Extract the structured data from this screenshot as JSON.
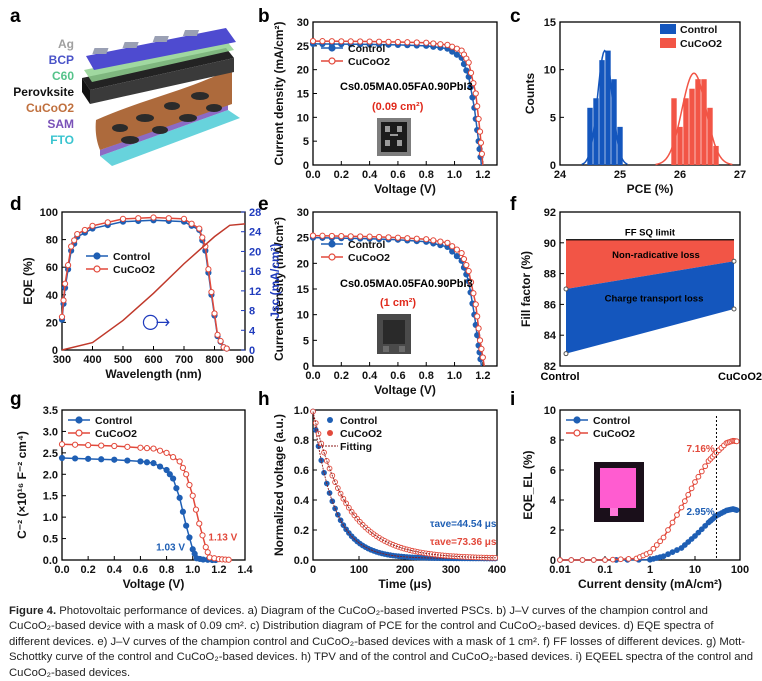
{
  "panels": {
    "a": {
      "label": "a",
      "layers": [
        "Ag",
        "BCP",
        "C60",
        "Perovksite",
        "CuCoO2",
        "SAM",
        "FTO"
      ]
    },
    "b": {
      "label": "b",
      "formula": "Cs0.05MA0.05FA0.90PbI3",
      "mask": "(0.09 cm²)"
    },
    "c": {
      "label": "c"
    },
    "d": {
      "label": "d"
    },
    "e": {
      "label": "e",
      "formula": "Cs0.05MA0.05FA0.90PbI3",
      "mask": "(1 cm²)"
    },
    "f": {
      "label": "f",
      "sq": "FF SQ limit",
      "nonrad": "Non-radicative loss",
      "transport": "Charge transport loss"
    },
    "g": {
      "label": "g",
      "control_v": "1.03 V",
      "cucoo2_v": "1.13 V"
    },
    "h": {
      "label": "h",
      "fitting": "Fitting",
      "tau_control": "τave=44.54 μs",
      "tau_cucoo2": "τave=73.36 μs"
    },
    "i": {
      "label": "i",
      "control_pct": "2.95%",
      "cucoo2_pct": "7.16%"
    }
  },
  "legend": {
    "control": "Control",
    "cucoo2": "CuCoO2"
  },
  "colors": {
    "control": "#1f5fb4",
    "cucoo2": "#e2493b",
    "blue_fill": "#1456bd",
    "red_fill": "#f25546"
  },
  "chart_data": [
    {
      "id": "b",
      "type": "line",
      "title": "",
      "xlabel": "Voltage (V)",
      "ylabel": "Current density (mA/cm²)",
      "xlim": [
        0.0,
        1.3
      ],
      "ylim": [
        0,
        30
      ],
      "xticks": [
        "0.0",
        "0.2",
        "0.4",
        "0.6",
        "0.8",
        "1.0",
        "1.2"
      ],
      "yticks": [
        "0",
        "5",
        "10",
        "15",
        "20",
        "25",
        "30"
      ],
      "series": [
        {
          "name": "Control",
          "x": [
            0,
            0.2,
            0.4,
            0.6,
            0.8,
            0.95,
            1.05,
            1.1,
            1.14,
            1.17,
            1.19
          ],
          "y": [
            25.4,
            25.35,
            25.3,
            25.2,
            25.0,
            24.4,
            22.5,
            18.5,
            12,
            5,
            0
          ]
        },
        {
          "name": "CuCoO2",
          "x": [
            0,
            0.2,
            0.4,
            0.6,
            0.8,
            0.95,
            1.05,
            1.1,
            1.15,
            1.18,
            1.2
          ],
          "y": [
            26.0,
            25.95,
            25.9,
            25.8,
            25.65,
            25.2,
            24.0,
            21.5,
            15,
            7,
            0
          ]
        }
      ]
    },
    {
      "id": "c",
      "type": "bar",
      "xlabel": "PCE (%)",
      "ylabel": "Counts",
      "xlim": [
        24,
        27
      ],
      "ylim": [
        0,
        15
      ],
      "xticks": [
        "24",
        "25",
        "26",
        "27"
      ],
      "yticks": [
        "0",
        "5",
        "10",
        "15"
      ],
      "series": [
        {
          "name": "Control",
          "x": [
            24.5,
            24.6,
            24.7,
            24.8,
            24.9,
            25.0
          ],
          "values": [
            6,
            7,
            11,
            12,
            9,
            4
          ]
        },
        {
          "name": "CuCoO2",
          "x": [
            25.9,
            26.0,
            26.1,
            26.2,
            26.3,
            26.4,
            26.5,
            26.6
          ],
          "values": [
            7,
            4,
            7,
            8,
            9,
            9,
            6,
            2
          ]
        }
      ]
    },
    {
      "id": "d",
      "type": "line",
      "xlabel": "Wavelength (nm)",
      "ylabel": "EQE (%)",
      "y2label": "Jsc (mA/cm²)",
      "xlim": [
        300,
        900
      ],
      "ylim": [
        0,
        100
      ],
      "y2lim": [
        0,
        28
      ],
      "xticks": [
        "300",
        "400",
        "500",
        "600",
        "700",
        "800",
        "900"
      ],
      "yticks": [
        "0",
        "20",
        "40",
        "60",
        "80",
        "100"
      ],
      "y2ticks": [
        "0",
        "4",
        "8",
        "12",
        "16",
        "20",
        "24",
        "28"
      ],
      "series": [
        {
          "name": "Control",
          "x": [
            300,
            310,
            330,
            350,
            400,
            500,
            600,
            700,
            750,
            770,
            790,
            810,
            830,
            850
          ],
          "y": [
            22,
            45,
            72,
            82,
            88,
            93,
            94,
            93,
            87,
            72,
            40,
            10,
            2,
            0
          ]
        },
        {
          "name": "CuCoO2",
          "x": [
            300,
            310,
            330,
            350,
            400,
            500,
            600,
            700,
            750,
            770,
            790,
            810,
            830,
            850
          ],
          "y": [
            24,
            48,
            75,
            84,
            90,
            95,
            96,
            95,
            88,
            75,
            42,
            11,
            2,
            0
          ]
        },
        {
          "name": "Jsc integrated",
          "x": [
            300,
            400,
            500,
            600,
            700,
            800,
            850,
            900
          ],
          "y": [
            0,
            1.5,
            6,
            11.5,
            17.5,
            23,
            25.3,
            25.6
          ]
        }
      ]
    },
    {
      "id": "e",
      "type": "line",
      "xlabel": "Voltage (V)",
      "ylabel": "Current density (mA/cm²)",
      "xlim": [
        0.0,
        1.3
      ],
      "ylim": [
        0,
        30
      ],
      "xticks": [
        "0.0",
        "0.2",
        "0.4",
        "0.6",
        "0.8",
        "1.0",
        "1.2"
      ],
      "yticks": [
        "0",
        "5",
        "10",
        "15",
        "20",
        "25",
        "30"
      ],
      "series": [
        {
          "name": "Control",
          "x": [
            0,
            0.2,
            0.4,
            0.6,
            0.8,
            0.95,
            1.05,
            1.1,
            1.14,
            1.17,
            1.19
          ],
          "y": [
            25.0,
            24.9,
            24.8,
            24.6,
            24.2,
            23.2,
            20.5,
            16.5,
            10,
            4,
            0
          ]
        },
        {
          "name": "CuCoO2",
          "x": [
            0,
            0.2,
            0.4,
            0.6,
            0.8,
            0.95,
            1.05,
            1.1,
            1.15,
            1.18,
            1.21
          ],
          "y": [
            25.4,
            25.3,
            25.2,
            25.0,
            24.7,
            24.0,
            22.0,
            18.5,
            12,
            5,
            0
          ]
        }
      ]
    },
    {
      "id": "f",
      "type": "line",
      "xlabel": "",
      "ylabel": "Fill factor (%)",
      "categories": [
        "Control",
        "CuCoO2"
      ],
      "ylim": [
        82,
        92
      ],
      "yticks": [
        "82",
        "84",
        "86",
        "88",
        "90",
        "92"
      ],
      "sq_limit": 90.2,
      "series": [
        {
          "name": "Non-radiative bound",
          "values": [
            87.0,
            88.8
          ]
        },
        {
          "name": "Measured FF",
          "values": [
            82.8,
            85.7
          ]
        }
      ]
    },
    {
      "id": "g",
      "type": "line",
      "xlabel": "Voltage (V)",
      "ylabel": "C⁻² (×10¹⁶ F⁻² cm⁴)",
      "xlim": [
        0.0,
        1.4
      ],
      "ylim": [
        0.0,
        3.5
      ],
      "xticks": [
        "0.0",
        "0.2",
        "0.4",
        "0.6",
        "0.8",
        "1.0",
        "1.2",
        "1.4"
      ],
      "yticks": [
        "0.0",
        "0.5",
        "1.0",
        "1.5",
        "2.0",
        "2.5",
        "3.0",
        "3.5"
      ],
      "series": [
        {
          "name": "Control",
          "x": [
            0,
            0.2,
            0.4,
            0.6,
            0.7,
            0.8,
            0.85,
            0.9,
            0.95,
            1.0,
            1.03,
            1.08,
            1.15,
            1.2
          ],
          "y": [
            2.38,
            2.36,
            2.34,
            2.3,
            2.26,
            2.1,
            1.9,
            1.45,
            0.8,
            0.25,
            0.04,
            0.01,
            0.0,
            0.0
          ]
        },
        {
          "name": "CuCoO2",
          "x": [
            0,
            0.2,
            0.4,
            0.6,
            0.7,
            0.8,
            0.9,
            0.95,
            1.0,
            1.05,
            1.1,
            1.13,
            1.2,
            1.25,
            1.3
          ],
          "y": [
            2.7,
            2.68,
            2.66,
            2.62,
            2.6,
            2.5,
            2.3,
            2.0,
            1.5,
            0.85,
            0.3,
            0.06,
            0.02,
            0.01,
            0.0
          ]
        }
      ]
    },
    {
      "id": "h",
      "type": "line",
      "xlabel": "Time (μs)",
      "ylabel": "Normalized voltage (a.u.)",
      "xlim": [
        0,
        400
      ],
      "ylim": [
        0.0,
        1.0
      ],
      "xticks": [
        "0",
        "100",
        "200",
        "300",
        "400"
      ],
      "yticks": [
        "0.0",
        "0.2",
        "0.4",
        "0.6",
        "0.8",
        "1.0"
      ],
      "series": [
        {
          "name": "Control",
          "tau": 44.54
        },
        {
          "name": "CuCoO2",
          "tau": 73.36
        }
      ]
    },
    {
      "id": "i",
      "type": "line",
      "xlabel": "Current density (mA/cm²)",
      "ylabel": "EQE_EL (%)",
      "xscale": "log",
      "xlim": [
        0.01,
        100
      ],
      "ylim": [
        0,
        10
      ],
      "xticks": [
        "0.01",
        "0.1",
        "1",
        "10",
        "100"
      ],
      "yticks": [
        "0",
        "2",
        "4",
        "6",
        "8",
        "10"
      ],
      "series": [
        {
          "name": "Control",
          "x": [
            0.01,
            0.1,
            1,
            2,
            5,
            10,
            20,
            30,
            50,
            70,
            90
          ],
          "y": [
            0,
            0,
            0.02,
            0.25,
            0.8,
            1.6,
            2.5,
            2.95,
            3.3,
            3.4,
            3.3
          ]
        },
        {
          "name": "CuCoO2",
          "x": [
            0.01,
            0.1,
            0.5,
            1,
            2,
            5,
            10,
            20,
            30,
            50,
            70,
            90
          ],
          "y": [
            0,
            0,
            0.1,
            0.5,
            1.5,
            3.5,
            5.2,
            6.6,
            7.16,
            7.8,
            7.95,
            7.9
          ]
        }
      ]
    }
  ],
  "caption": {
    "lead": "Figure 4.",
    "text": "Photovoltaic performance of devices. a) Diagram of the CuCoO₂-based inverted PSCs. b) J–V curves of the champion control and CuCoO₂-based device with a mask of 0.09 cm². c) Distribution diagram of PCE for the control and CuCoO₂-based devices. d) EQE spectra of different devices. e) J–V curves of the champion control and CuCoO₂-based devices with a mask of 1 cm². f) FF losses of different devices. g) Mott-Schottky curve of the control and CuCoO₂-based devices. h) TPV and of the control and CuCoO₂-based devices. i) EQEEL spectra of the control and CuCoO₂-based devices."
  }
}
